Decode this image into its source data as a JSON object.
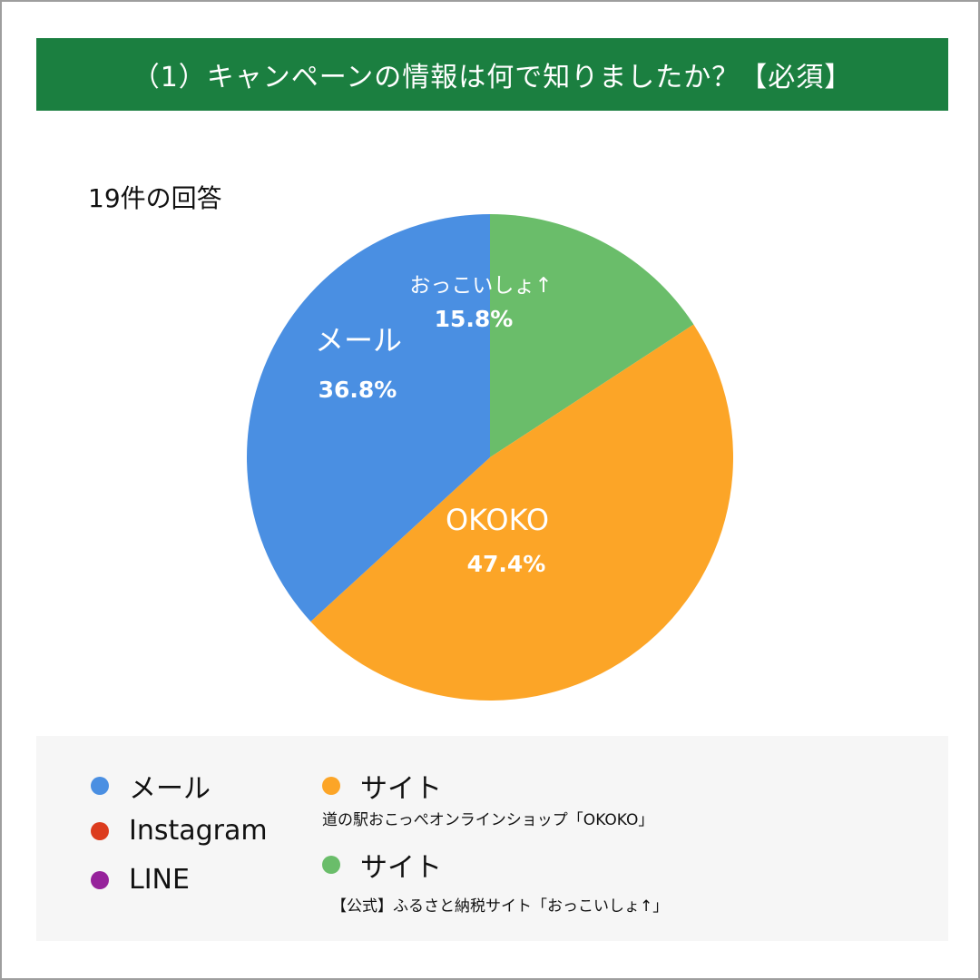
{
  "header": {
    "title": "（1）キャンペーンの情報は何で知りましたか？【必須】"
  },
  "response_count": "19件の回答",
  "colors": {
    "header_bg": "#1b7f40",
    "mail": "#4a8fe2",
    "instagram": "#dc3c1e",
    "line": "#96229b",
    "okoko": "#fca527",
    "okkoisho": "#6abd6a"
  },
  "chart_data": {
    "type": "pie",
    "title": "",
    "slices": [
      {
        "label": "おっこいしょ↑",
        "value": 15.8,
        "display": "15.8%",
        "color": "#6abd6a"
      },
      {
        "label": "OKOKO",
        "value": 47.4,
        "display": "47.4%",
        "color": "#fca527"
      },
      {
        "label": "メール",
        "value": 36.8,
        "display": "36.8%",
        "color": "#4a8fe2"
      }
    ],
    "legend": [
      {
        "label": "メール",
        "color": "#4a8fe2"
      },
      {
        "label": "Instagram",
        "color": "#dc3c1e"
      },
      {
        "label": "LINE",
        "color": "#96229b"
      },
      {
        "label": "サイト",
        "sublabel": "道の駅おこっぺオンラインショップ「OKOKO」",
        "color": "#fca527"
      },
      {
        "label": "サイト",
        "sublabel": "【公式】ふるさと納税サイト「おっこいしょ↑」",
        "color": "#6abd6a"
      }
    ],
    "legend_placement": "bottom"
  }
}
